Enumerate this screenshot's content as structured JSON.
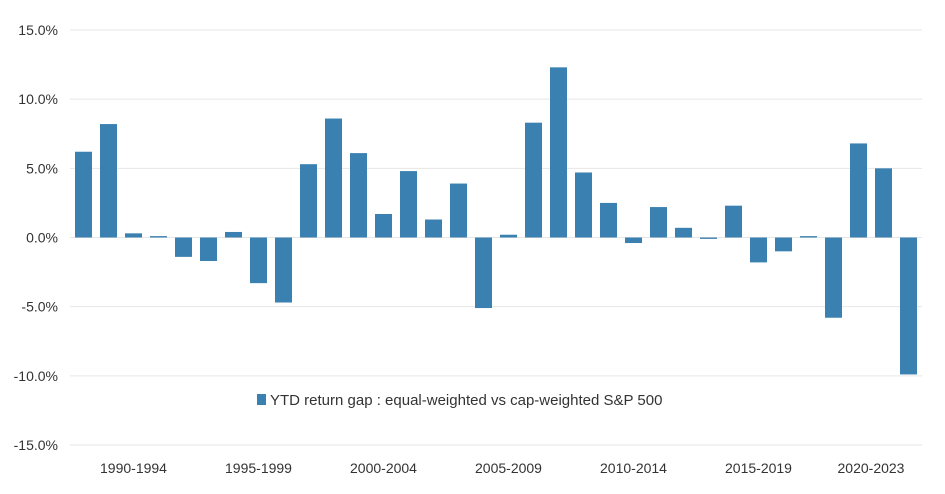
{
  "chart_data": {
    "type": "bar",
    "title": "",
    "xlabel": "",
    "ylabel": "",
    "ylim": [
      -15,
      15
    ],
    "yticks": [
      -15,
      -10,
      -5,
      0,
      5,
      10,
      15
    ],
    "ytick_labels": [
      "-15.0%",
      "-10.0%",
      "-5.0%",
      "0.0%",
      "5.0%",
      "10.0%",
      "15.0%"
    ],
    "grid": true,
    "legend_position": "bottom-center",
    "color": "#3a80b0",
    "x": [
      1990,
      1991,
      1992,
      1993,
      1994,
      1995,
      1996,
      1997,
      1998,
      1999,
      2000,
      2001,
      2002,
      2003,
      2004,
      2005,
      2006,
      2007,
      2008,
      2009,
      2010,
      2011,
      2012,
      2013,
      2014,
      2015,
      2016,
      2017,
      2018,
      2019,
      2020,
      2021,
      2022,
      2023
    ],
    "category_labels": [
      {
        "label": "1990-1994",
        "start": 1990,
        "end": 1994
      },
      {
        "label": "1995-1999",
        "start": 1995,
        "end": 1999
      },
      {
        "label": "2000-2004",
        "start": 2000,
        "end": 2004
      },
      {
        "label": "2005-2009",
        "start": 2005,
        "end": 2009
      },
      {
        "label": "2010-2014",
        "start": 2010,
        "end": 2014
      },
      {
        "label": "2015-2019",
        "start": 2015,
        "end": 2019
      },
      {
        "label": "2020-2023",
        "start": 2020,
        "end": 2023
      }
    ],
    "series": [
      {
        "name": "YTD return gap : equal-weighted vs cap-weighted S&P 500",
        "values": [
          6.2,
          8.2,
          0.3,
          0.1,
          -1.4,
          -1.7,
          0.4,
          -3.3,
          -4.7,
          5.3,
          8.6,
          6.1,
          1.7,
          4.8,
          1.3,
          3.9,
          -5.1,
          0.2,
          8.3,
          12.3,
          4.7,
          2.5,
          -0.4,
          2.2,
          0.7,
          -0.1,
          2.3,
          -1.8,
          -1.0,
          0.1,
          -5.8,
          6.8,
          5.0,
          -9.9
        ]
      }
    ]
  }
}
